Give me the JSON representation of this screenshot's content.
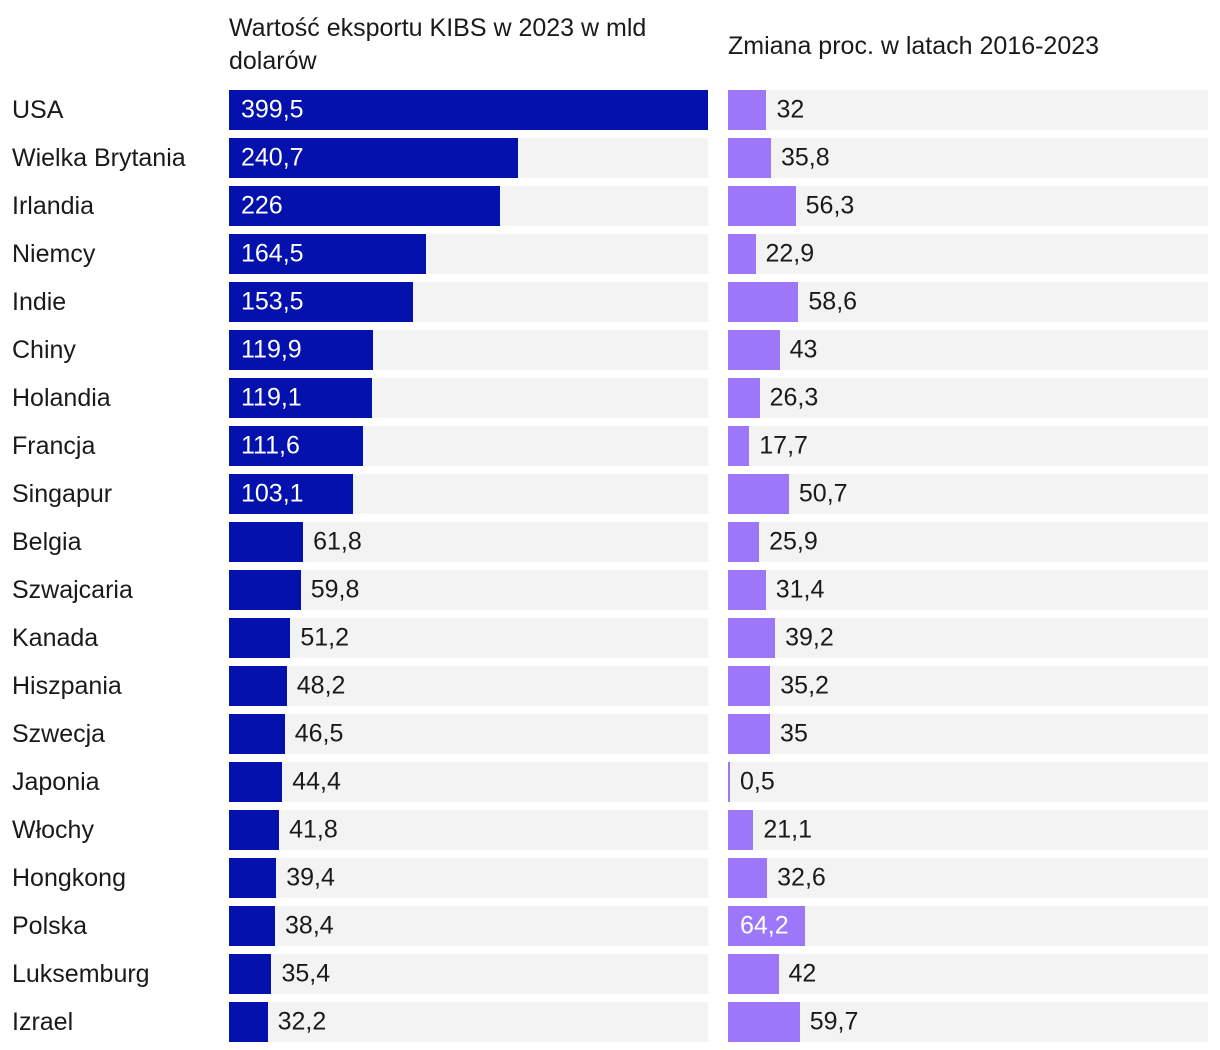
{
  "chart_data": {
    "type": "bar",
    "orientation": "horizontal",
    "categories": [
      "USA",
      "Wielka Brytania",
      "Irlandia",
      "Niemcy",
      "Indie",
      "Chiny",
      "Holandia",
      "Francja",
      "Singapur",
      "Belgia",
      "Szwajcaria",
      "Kanada",
      "Hiszpania",
      "Szwecja",
      "Japonia",
      "Włochy",
      "Hongkong",
      "Polska",
      "Luksemburg",
      "Izrael"
    ],
    "series": [
      {
        "name": "Wartość eksportu KIBS w 2023 w mld dolarów",
        "values": [
          399.5,
          240.7,
          226,
          164.5,
          153.5,
          119.9,
          119.1,
          111.6,
          103.1,
          61.8,
          59.8,
          51.2,
          48.2,
          46.5,
          44.4,
          41.8,
          39.4,
          38.4,
          35.4,
          32.2
        ],
        "labels": [
          "399,5",
          "240,7",
          "226",
          "164,5",
          "153,5",
          "119,9",
          "119,1",
          "111,6",
          "103,1",
          "61,8",
          "59,8",
          "51,2",
          "48,2",
          "46,5",
          "44,4",
          "41,8",
          "39,4",
          "38,4",
          "35,4",
          "32,2"
        ]
      },
      {
        "name": "Zmiana proc. w latach 2016-2023",
        "values": [
          32,
          35.8,
          56.3,
          22.9,
          58.6,
          43,
          26.3,
          17.7,
          50.7,
          25.9,
          31.4,
          39.2,
          35.2,
          35,
          0.5,
          21.1,
          32.6,
          64.2,
          42,
          59.7
        ],
        "labels": [
          "32",
          "35,8",
          "56,3",
          "22,9",
          "58,6",
          "43",
          "26,3",
          "17,7",
          "50,7",
          "25,9",
          "31,4",
          "39,2",
          "35,2",
          "35",
          "0,5",
          "21,1",
          "32,6",
          "64,2",
          "42",
          "59,7"
        ]
      }
    ],
    "xlim": [
      0,
      399.5
    ],
    "shared_scale": true,
    "grid": false,
    "legend_position": "column-headers"
  },
  "colors": {
    "export_bar": "#0411ad",
    "change_bar": "#9c77fa",
    "row_track": "#f3f3f3",
    "text": "#1a1a1a",
    "label_inside": "#ffffff",
    "background": "#ffffff"
  }
}
